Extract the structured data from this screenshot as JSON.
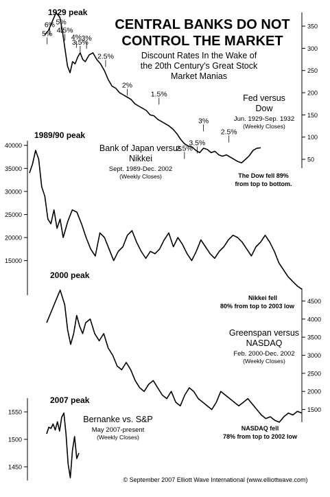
{
  "page": {
    "title_line1": "CENTRAL BANKS DO NOT",
    "title_line2": "CONTROL THE MARKET",
    "subtitle_line1": "Discount Rates In the Wake of",
    "subtitle_line2": "the 20th Century's Great Stock",
    "subtitle_line3": "Market Manias",
    "copyright": "© September 2007 Elliott Wave International (www.elliottwave.com)"
  },
  "chart_data": [
    {
      "type": "line",
      "id": "dow",
      "title": "Fed versus",
      "title2": "Dow",
      "range_text": "Jun. 1929-Sep. 1932",
      "note": "(Weekly Closes)",
      "peak_label": "1929 peak",
      "footnote_line1": "The Dow fell 89%",
      "footnote_line2": "from top to bottom.",
      "y_axis_side": "right",
      "y_ticks": [
        350,
        300,
        250,
        200,
        150,
        100,
        50
      ],
      "ylim": [
        30,
        381
      ],
      "x": [
        0,
        3,
        6,
        9,
        12,
        14,
        16,
        18,
        20,
        22,
        24,
        26,
        28,
        30,
        32,
        35,
        38,
        41,
        44,
        47,
        50,
        53,
        56,
        59,
        62,
        65,
        68,
        71,
        74,
        77,
        80,
        83,
        86,
        89,
        92,
        95,
        98,
        101,
        104,
        107,
        110,
        113,
        116,
        119,
        122,
        125,
        128,
        131,
        134,
        137,
        140,
        143,
        146,
        149,
        152,
        155,
        158,
        161,
        164,
        167,
        170
      ],
      "values": [
        330,
        340,
        360,
        380,
        370,
        340,
        300,
        260,
        245,
        270,
        265,
        280,
        290,
        275,
        270,
        285,
        290,
        275,
        265,
        250,
        230,
        215,
        210,
        200,
        195,
        190,
        185,
        175,
        170,
        165,
        160,
        150,
        148,
        140,
        135,
        130,
        125,
        118,
        108,
        95,
        85,
        80,
        78,
        70,
        65,
        75,
        72,
        65,
        68,
        60,
        57,
        60,
        55,
        50,
        45,
        42,
        50,
        58,
        70,
        75,
        76
      ],
      "annotations": [
        {
          "label": "5%",
          "x": 2,
          "y": 306
        },
        {
          "label": "6%",
          "x": 4,
          "y": 326
        },
        {
          "label": "5%",
          "x": 13,
          "y": 332
        },
        {
          "label": "4.5%",
          "x": 16,
          "y": 314
        },
        {
          "label": "4%",
          "x": 25,
          "y": 298
        },
        {
          "label": "3.5%",
          "x": 28,
          "y": 287
        },
        {
          "label": "3%",
          "x": 33,
          "y": 296
        },
        {
          "label": "2.5%",
          "x": 48,
          "y": 255
        },
        {
          "label": "2%",
          "x": 65,
          "y": 190
        },
        {
          "label": "1.5%",
          "x": 90,
          "y": 170
        },
        {
          "label": "3%",
          "x": 125,
          "y": 110
        },
        {
          "label": "3.5%",
          "x": 120,
          "y": 60
        },
        {
          "label": "2.5%",
          "x": 110,
          "y": 48
        },
        {
          "label": "2.5%",
          "x": 145,
          "y": 85
        }
      ]
    },
    {
      "type": "line",
      "id": "nikkei",
      "title": "Bank of Japan versus",
      "title2": "Nikkei",
      "range_text": "Sept. 1989-Dec. 2002",
      "note": "(Weekly Closes)",
      "peak_label": "1989/90 peak",
      "footnote_line1": "Nikkei fell",
      "footnote_line2": "80% from top to 2003 low",
      "y_axis_side": "left",
      "y_ticks": [
        40000,
        35000,
        30000,
        25000,
        20000,
        15000
      ],
      "ylim": [
        7500,
        41000
      ],
      "x": [
        0,
        2,
        4,
        6,
        8,
        10,
        12,
        14,
        16,
        18,
        20,
        22,
        25,
        28,
        31,
        34,
        37,
        40,
        43,
        46,
        49,
        52,
        55,
        58,
        61,
        64,
        67,
        70,
        73,
        76,
        79,
        82,
        85,
        88,
        91,
        94,
        97,
        100,
        103,
        106,
        109,
        112,
        115,
        118,
        121,
        124,
        127,
        130,
        133,
        136,
        139,
        142,
        145,
        148,
        151,
        154,
        157,
        160,
        163,
        166,
        169,
        172,
        175,
        178
      ],
      "values": [
        34000,
        36000,
        38900,
        37000,
        31000,
        29000,
        24000,
        23000,
        26000,
        22000,
        24000,
        20000,
        23500,
        26000,
        25500,
        23000,
        20000,
        17500,
        16000,
        21000,
        20000,
        17500,
        15000,
        17000,
        18000,
        20500,
        21500,
        19000,
        17000,
        15500,
        17000,
        16500,
        17500,
        19500,
        21000,
        18000,
        20000,
        18500,
        16500,
        15000,
        17000,
        19500,
        18000,
        16500,
        15500,
        17000,
        18000,
        19500,
        20500,
        20000,
        19000,
        17500,
        16000,
        18000,
        19000,
        20500,
        19000,
        17000,
        14500,
        13000,
        11500,
        10500,
        9500,
        8800
      ]
    },
    {
      "type": "line",
      "id": "nasdaq",
      "title": "Greenspan versus",
      "title2": "NASDAQ",
      "range_text": "Feb. 2000-Dec. 2002",
      "note": "(Weekly Closes)",
      "peak_label": "2000 peak",
      "footnote_line1": "NASDAQ fell",
      "footnote_line2": "78% from top to 2002 low",
      "y_axis_side": "right",
      "y_ticks": [
        4500,
        4000,
        3500,
        3000,
        2500,
        2000,
        1500
      ],
      "ylim": [
        1150,
        4850
      ],
      "x": [
        0,
        3,
        6,
        9,
        12,
        14,
        16,
        18,
        20,
        22,
        24,
        26,
        29,
        32,
        35,
        38,
        41,
        44,
        47,
        50,
        53,
        56,
        59,
        62,
        65,
        68,
        71,
        74,
        77,
        80,
        83,
        86,
        89,
        92,
        95,
        98,
        101,
        104,
        107,
        110,
        113,
        116,
        119,
        122,
        125,
        128,
        131,
        134,
        137,
        140,
        143,
        146,
        149,
        152,
        155,
        158,
        161,
        164,
        167,
        170
      ],
      "values": [
        3900,
        4200,
        4500,
        4800,
        4400,
        3700,
        3300,
        3600,
        4100,
        3800,
        3600,
        3900,
        4000,
        3600,
        3400,
        3600,
        3200,
        3000,
        2700,
        2600,
        2800,
        2600,
        2300,
        2100,
        2000,
        2200,
        2300,
        2100,
        1900,
        1800,
        2000,
        1700,
        1600,
        1900,
        2100,
        2000,
        1800,
        1700,
        1600,
        1500,
        1700,
        2000,
        1900,
        1800,
        1700,
        1600,
        1700,
        1800,
        1650,
        1500,
        1350,
        1250,
        1300,
        1200,
        1150,
        1300,
        1400,
        1350,
        1450,
        1400
      ]
    },
    {
      "type": "line",
      "id": "sp",
      "title": "Bernanke vs. S&P",
      "range_text": "May 2007-present",
      "note": "(Weekly Closes)",
      "peak_label": "2007 peak",
      "y_axis_side": "left",
      "y_ticks": [
        1550,
        1500,
        1450
      ],
      "ylim": [
        1425,
        1575
      ],
      "x": [
        0,
        1,
        2,
        3,
        4,
        5,
        6,
        7,
        8,
        9,
        10,
        11,
        12,
        13,
        14,
        15
      ],
      "values": [
        1510,
        1522,
        1520,
        1528,
        1517,
        1532,
        1515,
        1540,
        1548,
        1510,
        1455,
        1430,
        1480,
        1505,
        1465,
        1475
      ]
    }
  ]
}
